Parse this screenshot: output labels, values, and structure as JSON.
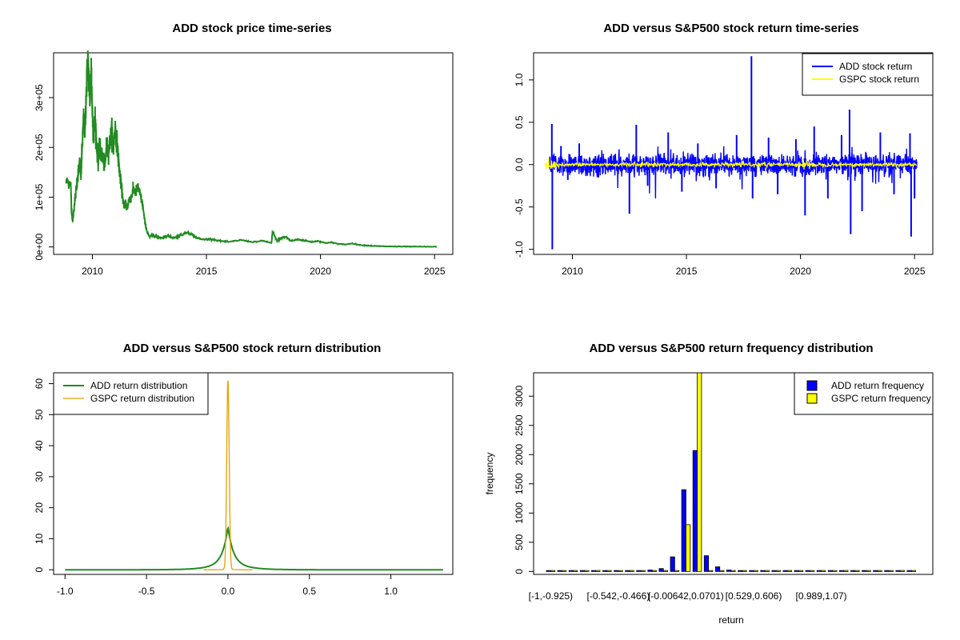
{
  "colors": {
    "price": "#228B22",
    "add": "#0000FF",
    "gspc": "#FFFF00",
    "add_density": "#228B22",
    "gspc_density": "#E6A000",
    "add_freq": "#0000FF",
    "gspc_freq": "#FFFF00",
    "axis": "#000000"
  },
  "chart_data": [
    {
      "type": "line",
      "title": "ADD stock price time-series",
      "xlabel": "",
      "ylabel": "",
      "xlim": [
        2008.3,
        2025.8
      ],
      "ylim": [
        -15000,
        390000
      ],
      "x_ticks": [
        2010,
        2015,
        2020,
        2025
      ],
      "x_tick_labels": [
        "2010",
        "2015",
        "2020",
        "2025"
      ],
      "y_ticks": [
        0,
        100000,
        200000,
        300000
      ],
      "y_tick_labels": [
        "0e+00",
        "1e+05",
        "2e+05",
        "3e+05"
      ],
      "series": [
        {
          "color": "price",
          "x": [
            2008.85,
            2009.05,
            2009.08,
            2009.13,
            2009.2,
            2009.3,
            2009.38,
            2009.45,
            2009.5,
            2009.55,
            2009.62,
            2009.68,
            2009.72,
            2009.8,
            2009.85,
            2009.9,
            2009.95,
            2010.0,
            2010.05,
            2010.12,
            2010.18,
            2010.25,
            2010.32,
            2010.4,
            2010.48,
            2010.55,
            2010.62,
            2010.7,
            2010.78,
            2010.85,
            2010.92,
            2011.0,
            2011.08,
            2011.15,
            2011.22,
            2011.3,
            2011.38,
            2011.45,
            2011.52,
            2011.6,
            2011.7,
            2011.8,
            2011.9,
            2012.0,
            2012.1,
            2012.2,
            2012.3,
            2012.4,
            2012.5,
            2012.65,
            2012.8,
            2013.0,
            2013.3,
            2013.6,
            2013.9,
            2014.2,
            2014.5,
            2014.8,
            2015.2,
            2015.6,
            2016.0,
            2016.5,
            2017.0,
            2017.5,
            2017.85,
            2017.9,
            2018.1,
            2018.3,
            2018.5,
            2018.7,
            2019.0,
            2019.3,
            2019.6,
            2019.9,
            2020.2,
            2020.5,
            2020.8,
            2021.1,
            2021.4,
            2021.7,
            2022.0,
            2022.3,
            2022.6,
            2023.0,
            2023.5,
            2024.0,
            2024.5,
            2025.1
          ],
          "y": [
            130000,
            130000,
            80000,
            50000,
            80000,
            120000,
            150000,
            170000,
            140000,
            200000,
            260000,
            230000,
            300000,
            380000,
            330000,
            300000,
            360000,
            270000,
            220000,
            260000,
            210000,
            170000,
            200000,
            185000,
            175000,
            160000,
            205000,
            190000,
            215000,
            235000,
            195000,
            240000,
            210000,
            170000,
            140000,
            110000,
            80000,
            90000,
            75000,
            95000,
            100000,
            115000,
            110000,
            120000,
            105000,
            85000,
            50000,
            30000,
            20000,
            25000,
            20000,
            18000,
            22000,
            18000,
            25000,
            30000,
            20000,
            15000,
            16000,
            12000,
            10000,
            14000,
            10000,
            12000,
            8000,
            30000,
            12000,
            18000,
            20000,
            12000,
            15000,
            13000,
            10000,
            12000,
            8000,
            9000,
            6000,
            5000,
            7000,
            4000,
            3000,
            2000,
            1500,
            1000,
            800,
            600,
            500,
            400
          ]
        }
      ]
    },
    {
      "type": "line",
      "title": "ADD versus S&P500 stock return time-series",
      "xlabel": "",
      "ylabel": "",
      "xlim": [
        2008.3,
        2025.8
      ],
      "ylim": [
        -1.06,
        1.32
      ],
      "x_ticks": [
        2010,
        2015,
        2020,
        2025
      ],
      "x_tick_labels": [
        "2010",
        "2015",
        "2020",
        "2025"
      ],
      "y_ticks": [
        -1.0,
        -0.5,
        0.0,
        0.5,
        1.0
      ],
      "y_tick_labels": [
        "-1.0",
        "-0.5",
        "0.0",
        "0.5",
        "1.0"
      ],
      "legend": {
        "position": "top-right",
        "entries": [
          "ADD stock return",
          "GSPC stock return"
        ]
      },
      "series": [
        {
          "name": "ADD stock return",
          "color": "add",
          "start": 2009.0,
          "end": 2025.1,
          "spikes": [
            [
              2009.1,
              0.48
            ],
            [
              2009.12,
              -1.0
            ],
            [
              2009.5,
              0.22
            ],
            [
              2009.8,
              -0.18
            ],
            [
              2010.3,
              0.25
            ],
            [
              2011.1,
              -0.15
            ],
            [
              2012.5,
              -0.58
            ],
            [
              2012.8,
              0.47
            ],
            [
              2013.3,
              -0.25
            ],
            [
              2014.2,
              0.38
            ],
            [
              2014.8,
              -0.32
            ],
            [
              2015.5,
              0.25
            ],
            [
              2016.3,
              -0.28
            ],
            [
              2017.2,
              0.35
            ],
            [
              2017.85,
              1.28
            ],
            [
              2017.9,
              -0.4
            ],
            [
              2018.6,
              0.32
            ],
            [
              2019.0,
              -0.35
            ],
            [
              2019.8,
              0.3
            ],
            [
              2020.2,
              -0.6
            ],
            [
              2020.6,
              0.45
            ],
            [
              2021.2,
              -0.4
            ],
            [
              2021.8,
              0.35
            ],
            [
              2022.15,
              0.65
            ],
            [
              2022.2,
              -0.82
            ],
            [
              2022.7,
              -0.55
            ],
            [
              2023.5,
              0.38
            ],
            [
              2024.1,
              -0.35
            ],
            [
              2024.8,
              0.37
            ],
            [
              2024.85,
              -0.85
            ],
            [
              2025.0,
              -0.4
            ]
          ]
        },
        {
          "name": "GSPC stock return",
          "color": "gspc",
          "start": 2008.8,
          "end": 2025.1
        }
      ]
    },
    {
      "type": "line",
      "title": "ADD versus S&P500 stock return distribution",
      "xlabel": "",
      "ylabel": "",
      "xlim": [
        -1.07,
        1.38
      ],
      "ylim": [
        -1.5,
        63.5
      ],
      "x_ticks": [
        -1.0,
        -0.5,
        0.0,
        0.5,
        1.0
      ],
      "x_tick_labels": [
        "-1.0",
        "-0.5",
        "0.0",
        "0.5",
        "1.0"
      ],
      "y_ticks": [
        0,
        10,
        20,
        30,
        40,
        50,
        60
      ],
      "y_tick_labels": [
        "0",
        "10",
        "20",
        "30",
        "40",
        "50",
        "60"
      ],
      "legend": {
        "position": "top-left",
        "entries": [
          "ADD return distribution",
          "GSPC return distribution"
        ]
      },
      "series": [
        {
          "name": "ADD return distribution",
          "color": "add_density",
          "peak_x": 0.0,
          "peak_y": 14,
          "xmin": -1.0,
          "xmax": 1.32
        },
        {
          "name": "GSPC return distribution",
          "color": "gspc_density",
          "peak_x": 0.0,
          "peak_y": 61,
          "xmin": -0.15,
          "xmax": 0.15
        }
      ]
    },
    {
      "type": "bar",
      "title": "ADD versus S&P500 return frequency distribution",
      "xlabel": "return",
      "ylabel": "frequency",
      "ylim": [
        -50,
        3400
      ],
      "y_ticks": [
        0,
        500,
        1000,
        1500,
        2000,
        2500,
        3000
      ],
      "y_tick_labels": [
        "0",
        "500",
        "1000",
        "1500",
        "2000",
        "2500",
        "3000"
      ],
      "category_labels": [
        {
          "index": 0,
          "text": "[-1,-0.925)"
        },
        {
          "index": 6,
          "text": "[-0.542,-0.466)"
        },
        {
          "index": 12,
          "text": "[-0.00642,0.0701)"
        },
        {
          "index": 18,
          "text": "[0.529,0.606)"
        },
        {
          "index": 24,
          "text": "[0.989,1.07)"
        }
      ],
      "legend": {
        "position": "top-right",
        "entries": [
          "ADD return frequency",
          "GSPC return frequency"
        ]
      },
      "series": [
        {
          "name": "ADD return frequency",
          "color": "add_freq",
          "values": [
            2,
            2,
            2,
            3,
            3,
            5,
            8,
            10,
            15,
            25,
            50,
            250,
            1400,
            2070,
            270,
            80,
            25,
            15,
            8,
            5,
            4,
            3,
            3,
            2,
            2,
            2,
            2,
            1,
            1,
            1,
            1,
            1,
            1
          ]
        },
        {
          "name": "GSPC return frequency",
          "color": "gspc_freq",
          "values": [
            0,
            0,
            0,
            0,
            0,
            0,
            0,
            0,
            0,
            0,
            0,
            0,
            800,
            3400,
            0,
            0,
            0,
            0,
            0,
            0,
            0,
            0,
            0,
            0,
            0,
            0,
            0,
            0,
            0,
            0,
            0,
            0,
            0
          ]
        }
      ]
    }
  ]
}
